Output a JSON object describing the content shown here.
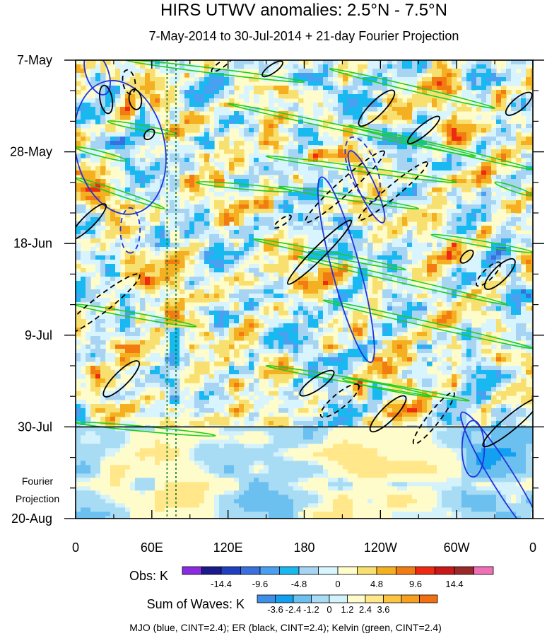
{
  "chart_data": {
    "type": "heatmap",
    "title": "HIRS UTWV anomalies: 2.5°N - 7.5°N",
    "subtitle": "7-May-2014 to 30-Jul-2014 + 21-day Fourier Projection",
    "x_ticks": [
      "0",
      "60E",
      "120E",
      "180",
      "120W",
      "60W",
      "0"
    ],
    "x_tick_lons": [
      0,
      60,
      120,
      180,
      240,
      300,
      360
    ],
    "y_ticks": [
      "7-May",
      "28-May",
      "18-Jun",
      "9-Jul",
      "30-Jul",
      "20-Aug"
    ],
    "y_tick_days": [
      0,
      21,
      42,
      63,
      84,
      105
    ],
    "xlim": [
      0,
      360
    ],
    "ylim_days": [
      0,
      105
    ],
    "observation_end_day": 84,
    "projection_label": [
      "Fourier",
      "Projection"
    ],
    "reference_lons": [
      72,
      79
    ],
    "obs_colorbar": {
      "label": "Obs: K",
      "tick_labels": [
        "-14.4",
        "-9.6",
        "-4.8",
        "0",
        "4.8",
        "9.6",
        "14.4"
      ],
      "colors": [
        "#8a2be2",
        "#1a1a8c",
        "#1f3fbf",
        "#3a6fe0",
        "#4aa0f0",
        "#18b8f0",
        "#a8d4f4",
        "#d8f4ff",
        "#fffccc",
        "#f8e070",
        "#f4b020",
        "#f27c12",
        "#ee2a10",
        "#c81818",
        "#9a2a2a",
        "#f070b8"
      ]
    },
    "waves_colorbar": {
      "label": "Sum of Waves: K",
      "tick_labels": [
        "-3.6",
        "-2.4",
        "-1.2",
        "0",
        "1.2",
        "2.4",
        "3.6"
      ],
      "colors": [
        "#3f8fe8",
        "#14a0f0",
        "#6cc0f0",
        "#a8dcf4",
        "#d4f2fb",
        "#fffccc",
        "#ffe78a",
        "#fcc440",
        "#f7a020",
        "#f27012"
      ]
    },
    "contour_legend": "MJO (blue, CINT=2.4); ER (black, CINT=2.4); Kelvin (green, CINT=2.4)",
    "wave_colors": {
      "MJO": "#2233dd",
      "ER": "#000000",
      "Kelvin": "#1ecf1e"
    },
    "wave_features": {
      "MJO": [
        {
          "lon": 35,
          "day": 20,
          "rx": 24,
          "ry": 16,
          "rot": 78,
          "dashed": false
        },
        {
          "lon": 17,
          "day": 3,
          "rx": 8,
          "ry": 4,
          "rot": 70,
          "dashed": false
        },
        {
          "lon": 43,
          "day": 39,
          "rx": 8,
          "ry": 3.5,
          "rot": 90,
          "dashed": true
        },
        {
          "lon": 213,
          "day": 48,
          "rx": 34,
          "ry": 5,
          "rot": 75,
          "dashed": false
        },
        {
          "lon": 226,
          "day": 25,
          "rx": 12,
          "ry": 5,
          "rot": 70,
          "dashed": true
        },
        {
          "lon": 229,
          "day": 29,
          "rx": 14,
          "ry": 3,
          "rot": 65,
          "dashed": false
        },
        {
          "lon": 337,
          "day": 96,
          "rx": 28,
          "ry": 4,
          "rot": 58,
          "dashed": false
        },
        {
          "lon": 313,
          "day": 89,
          "rx": 10,
          "ry": 4,
          "rot": 90,
          "dashed": false
        }
      ],
      "ER": [
        {
          "lon": 10,
          "day": 37,
          "rx": 12,
          "ry": 3,
          "rot": -45,
          "dashed": false
        },
        {
          "lon": 20,
          "day": 56,
          "rx": 24,
          "ry": 4,
          "rot": -38,
          "dashed": true
        },
        {
          "lon": 36,
          "day": 73,
          "rx": 12,
          "ry": 3.5,
          "rot": -45,
          "dashed": false
        },
        {
          "lon": 24,
          "day": 9,
          "rx": 7,
          "ry": 3,
          "rot": 80,
          "dashed": false
        },
        {
          "lon": 42,
          "day": 5,
          "rx": 6,
          "ry": 3,
          "rot": 80,
          "dashed": true
        },
        {
          "lon": 47,
          "day": 9,
          "rx": 5,
          "ry": 3,
          "rot": 80,
          "dashed": false
        },
        {
          "lon": 58,
          "day": 17,
          "rx": 3,
          "ry": 2,
          "rot": -45,
          "dashed": false
        },
        {
          "lon": 115,
          "day": 1,
          "rx": 6,
          "ry": 1.5,
          "rot": -35,
          "dashed": true
        },
        {
          "lon": 155,
          "day": 2,
          "rx": 6,
          "ry": 2,
          "rot": -35,
          "dashed": false
        },
        {
          "lon": 192,
          "day": 44,
          "rx": 22,
          "ry": 3,
          "rot": -45,
          "dashed": false
        },
        {
          "lon": 212,
          "day": 29,
          "rx": 26,
          "ry": 3.5,
          "rot": -42,
          "dashed": true
        },
        {
          "lon": 237,
          "day": 11,
          "rx": 12,
          "ry": 3.5,
          "rot": -45,
          "dashed": false
        },
        {
          "lon": 250,
          "day": 30,
          "rx": 22,
          "ry": 3,
          "rot": -40,
          "dashed": true
        },
        {
          "lon": 274,
          "day": 16,
          "rx": 10,
          "ry": 2.5,
          "rot": -40,
          "dashed": false
        },
        {
          "lon": 190,
          "day": 74,
          "rx": 10,
          "ry": 3,
          "rot": -35,
          "dashed": false
        },
        {
          "lon": 208,
          "day": 78,
          "rx": 12,
          "ry": 3.5,
          "rot": -40,
          "dashed": true
        },
        {
          "lon": 246,
          "day": 81,
          "rx": 12,
          "ry": 3.5,
          "rot": -45,
          "dashed": false
        },
        {
          "lon": 282,
          "day": 82,
          "rx": 16,
          "ry": 3,
          "rot": -52,
          "dashed": true
        },
        {
          "lon": 343,
          "day": 83,
          "rx": 18,
          "ry": 3.5,
          "rot": -40,
          "dashed": false
        },
        {
          "lon": 334,
          "day": 49,
          "rx": 10,
          "ry": 3.5,
          "rot": -45,
          "dashed": false
        },
        {
          "lon": 325,
          "day": 49,
          "rx": 8,
          "ry": 2.5,
          "rot": -45,
          "dashed": true
        },
        {
          "lon": 349,
          "day": 10,
          "rx": 8,
          "ry": 3,
          "rot": -40,
          "dashed": false
        },
        {
          "lon": 308,
          "day": 45,
          "rx": 4,
          "ry": 2,
          "rot": -45,
          "dashed": false
        },
        {
          "lon": 163,
          "day": 37,
          "rx": 5,
          "ry": 1.5,
          "rot": -35,
          "dashed": true
        }
      ],
      "Kelvin": [
        {
          "x1": 40,
          "d1": 0,
          "x2": 180,
          "d2": 5
        },
        {
          "x1": 120,
          "d1": 10,
          "x2": 315,
          "d2": 22
        },
        {
          "x1": 150,
          "d1": 22,
          "x2": 300,
          "d2": 28
        },
        {
          "x1": 160,
          "d1": 29,
          "x2": 270,
          "d2": 34
        },
        {
          "x1": 200,
          "d1": 2,
          "x2": 330,
          "d2": 11
        },
        {
          "x1": 215,
          "d1": 15,
          "x2": 360,
          "d2": 25
        },
        {
          "x1": 0,
          "d1": 27,
          "x2": 70,
          "d2": 34
        },
        {
          "x1": 0,
          "d1": 20,
          "x2": 40,
          "d2": 23
        },
        {
          "x1": 25,
          "d1": 14,
          "x2": 80,
          "d2": 17
        },
        {
          "x1": 95,
          "d1": 28,
          "x2": 170,
          "d2": 30
        },
        {
          "x1": 140,
          "d1": 41,
          "x2": 260,
          "d2": 48
        },
        {
          "x1": 175,
          "d1": 45,
          "x2": 340,
          "d2": 56
        },
        {
          "x1": 195,
          "d1": 55,
          "x2": 360,
          "d2": 66
        },
        {
          "x1": 0,
          "d1": 56,
          "x2": 95,
          "d2": 61
        },
        {
          "x1": 280,
          "d1": 40,
          "x2": 360,
          "d2": 44
        },
        {
          "x1": 330,
          "d1": 28,
          "x2": 360,
          "d2": 31
        },
        {
          "x1": 150,
          "d1": 70,
          "x2": 310,
          "d2": 78
        },
        {
          "x1": 210,
          "d1": 73,
          "x2": 280,
          "d2": 77
        },
        {
          "x1": 0,
          "d1": 83,
          "x2": 110,
          "d2": 86
        }
      ]
    }
  }
}
